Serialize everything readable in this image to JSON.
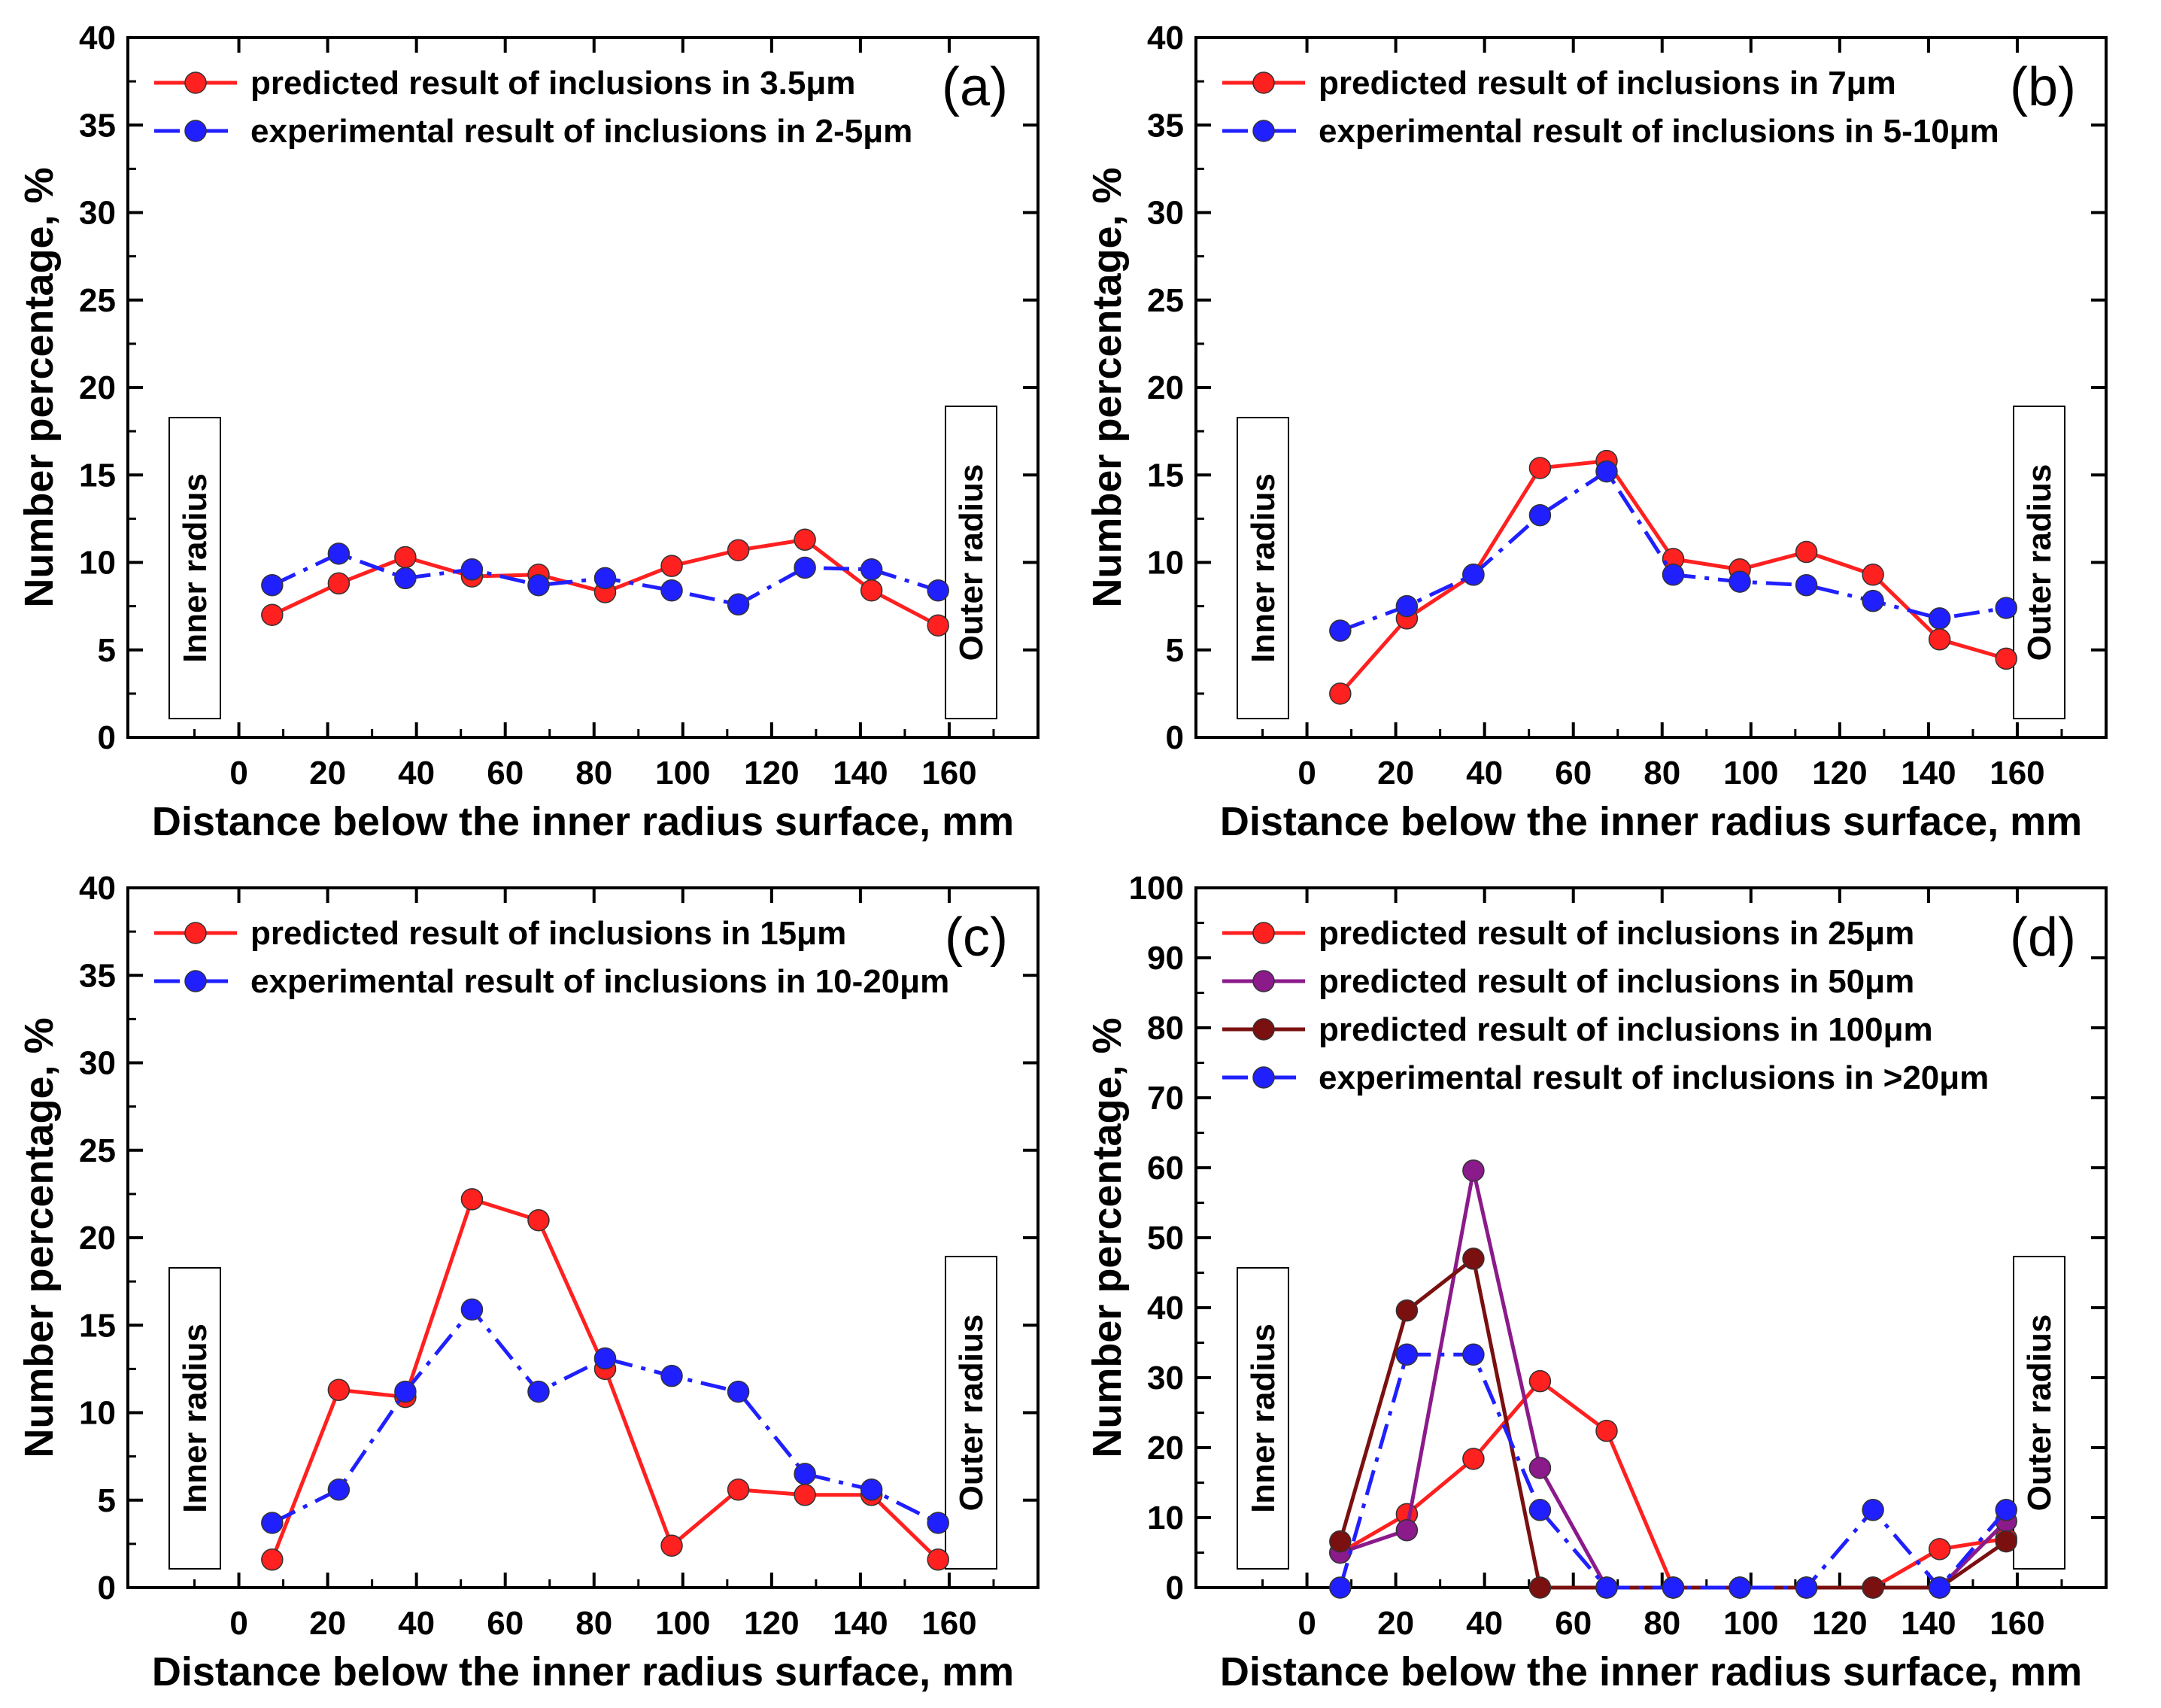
{
  "colors": {
    "predicted": "#ff2020",
    "experimental": "#2020ff",
    "predicted_50": "#8b1a8b",
    "predicted_100": "#7a1010",
    "axis": "#000000",
    "label_box": "#000000"
  },
  "chart_data": [
    {
      "type": "line",
      "panel_label": "(a)",
      "xlabel": "Distance below the inner radius surface, mm",
      "ylabel": "Number percentage, %",
      "xlim": [
        -25,
        180
      ],
      "ylim": [
        0,
        40
      ],
      "xticks": [
        0,
        20,
        40,
        60,
        80,
        100,
        120,
        140,
        160
      ],
      "yticks": [
        0,
        5,
        10,
        15,
        20,
        25,
        30,
        35,
        40
      ],
      "inner_label": "Inner radius",
      "outer_label": "Outer radius",
      "series": [
        {
          "name": "predicted result of inclusions in 3.5μm",
          "color_key": "predicted",
          "dash": false,
          "x": [
            7.5,
            22.5,
            37.5,
            52.5,
            67.5,
            82.5,
            97.5,
            112.5,
            127.5,
            142.5,
            157.5
          ],
          "y": [
            7.0,
            8.8,
            10.3,
            9.2,
            9.3,
            8.3,
            9.8,
            10.7,
            11.3,
            8.4,
            6.4
          ]
        },
        {
          "name": "experimental result of inclusions in 2-5μm",
          "color_key": "experimental",
          "dash": true,
          "x": [
            7.5,
            22.5,
            37.5,
            52.5,
            67.5,
            82.5,
            97.5,
            112.5,
            127.5,
            142.5,
            157.5
          ],
          "y": [
            8.7,
            10.5,
            9.1,
            9.6,
            8.7,
            9.1,
            8.4,
            7.6,
            9.7,
            9.6,
            8.4
          ]
        }
      ]
    },
    {
      "type": "line",
      "panel_label": "(b)",
      "xlabel": "Distance below the inner radius surface, mm",
      "ylabel": "Number percentage, %",
      "xlim": [
        -25,
        180
      ],
      "ylim": [
        0,
        40
      ],
      "xticks": [
        0,
        20,
        40,
        60,
        80,
        100,
        120,
        140,
        160
      ],
      "yticks": [
        0,
        5,
        10,
        15,
        20,
        25,
        30,
        35,
        40
      ],
      "inner_label": "Inner radius",
      "outer_label": "Outer radius",
      "series": [
        {
          "name": "predicted result of inclusions in 7μm",
          "color_key": "predicted",
          "dash": false,
          "x": [
            7.5,
            22.5,
            37.5,
            52.5,
            67.5,
            82.5,
            97.5,
            112.5,
            127.5,
            142.5,
            157.5
          ],
          "y": [
            2.5,
            6.8,
            9.3,
            15.4,
            15.8,
            10.2,
            9.6,
            10.6,
            9.3,
            5.6,
            4.5
          ]
        },
        {
          "name": "experimental result of inclusions in 5-10μm",
          "color_key": "experimental",
          "dash": true,
          "x": [
            7.5,
            22.5,
            37.5,
            52.5,
            67.5,
            82.5,
            97.5,
            112.5,
            127.5,
            142.5,
            157.5
          ],
          "y": [
            6.1,
            7.5,
            9.3,
            12.7,
            15.2,
            9.3,
            8.9,
            8.7,
            7.8,
            6.8,
            7.4
          ]
        }
      ]
    },
    {
      "type": "line",
      "panel_label": "(c)",
      "xlabel": "Distance below the inner radius surface, mm",
      "ylabel": "Number percentage, %",
      "xlim": [
        -25,
        180
      ],
      "ylim": [
        0,
        40
      ],
      "xticks": [
        0,
        20,
        40,
        60,
        80,
        100,
        120,
        140,
        160
      ],
      "yticks": [
        0,
        5,
        10,
        15,
        20,
        25,
        30,
        35,
        40
      ],
      "inner_label": "Inner radius",
      "outer_label": "Outer radius",
      "series": [
        {
          "name": "predicted result of inclusions in 15μm",
          "color_key": "predicted",
          "dash": false,
          "x": [
            7.5,
            22.5,
            37.5,
            52.5,
            67.5,
            82.5,
            97.5,
            112.5,
            127.5,
            142.5,
            157.5
          ],
          "y": [
            1.6,
            11.3,
            10.9,
            22.2,
            21.0,
            12.5,
            2.4,
            5.6,
            5.3,
            5.3,
            1.6
          ]
        },
        {
          "name": "experimental result of inclusions in 10-20μm",
          "color_key": "experimental",
          "dash": true,
          "x": [
            7.5,
            22.5,
            37.5,
            52.5,
            67.5,
            82.5,
            97.5,
            112.5,
            127.5,
            142.5,
            157.5
          ],
          "y": [
            3.7,
            5.6,
            11.2,
            15.9,
            11.2,
            13.1,
            12.1,
            11.2,
            6.5,
            5.6,
            3.7
          ]
        }
      ]
    },
    {
      "type": "line",
      "panel_label": "(d)",
      "xlabel": "Distance below the inner radius surface, mm",
      "ylabel": "Number percentage, %",
      "xlim": [
        -25,
        180
      ],
      "ylim": [
        0,
        100
      ],
      "xticks": [
        0,
        20,
        40,
        60,
        80,
        100,
        120,
        140,
        160
      ],
      "yticks": [
        0,
        10,
        20,
        30,
        40,
        50,
        60,
        70,
        80,
        90,
        100
      ],
      "inner_label": "Inner radius",
      "outer_label": "Outer radius",
      "series": [
        {
          "name": "predicted result of inclusions in 25μm",
          "color_key": "predicted",
          "dash": false,
          "x": [
            7.5,
            22.5,
            37.5,
            52.5,
            67.5,
            82.5,
            97.5,
            112.5,
            127.5,
            142.5,
            157.5
          ],
          "y": [
            5.0,
            10.5,
            18.4,
            29.5,
            22.4,
            0,
            0,
            0,
            0,
            5.5,
            7.0
          ]
        },
        {
          "name": "predicted result of inclusions in 50μm",
          "color_key": "predicted_50",
          "dash": false,
          "x": [
            7.5,
            22.5,
            37.5,
            52.5,
            67.5,
            82.5,
            97.5,
            112.5,
            127.5,
            142.5,
            157.5
          ],
          "y": [
            5.0,
            8.2,
            59.6,
            17.1,
            0,
            0,
            0,
            0,
            0,
            0,
            9.5
          ]
        },
        {
          "name": "predicted result of inclusions in 100μm",
          "color_key": "predicted_100",
          "dash": false,
          "x": [
            7.5,
            22.5,
            37.5,
            52.5,
            67.5,
            82.5,
            97.5,
            112.5,
            127.5,
            142.5,
            157.5
          ],
          "y": [
            6.6,
            39.6,
            47.0,
            0,
            0,
            0,
            0,
            0,
            0,
            0,
            6.6
          ]
        },
        {
          "name": "experimental result of inclusions in >20μm",
          "color_key": "experimental",
          "dash": true,
          "x": [
            7.5,
            22.5,
            37.5,
            52.5,
            67.5,
            82.5,
            97.5,
            112.5,
            127.5,
            142.5,
            157.5
          ],
          "y": [
            0,
            33.3,
            33.3,
            11.1,
            0,
            0,
            0,
            0,
            11.1,
            0,
            11.1
          ]
        }
      ]
    }
  ]
}
